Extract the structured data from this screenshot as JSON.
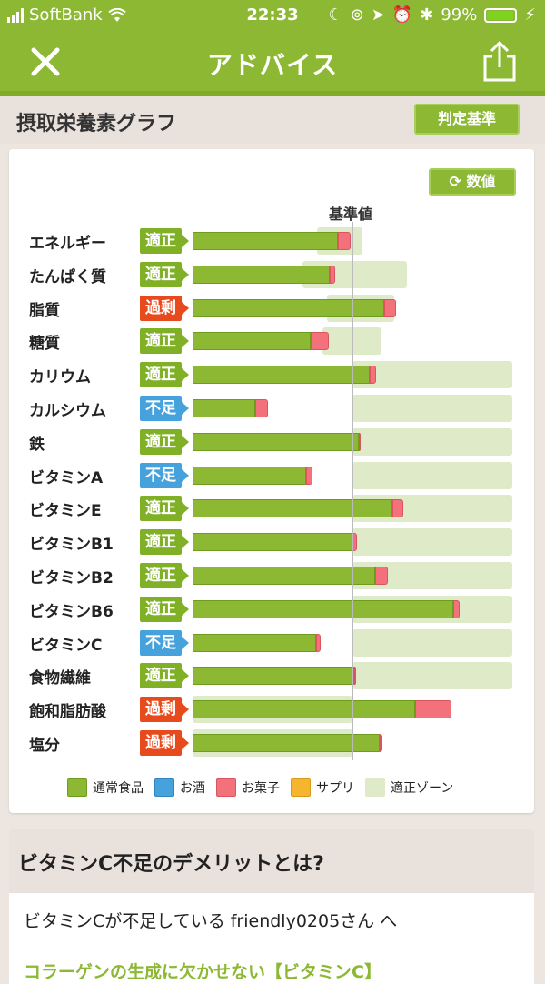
{
  "status_bar": {
    "carrier": "SoftBank",
    "time": "22:33",
    "battery": "99%"
  },
  "nav": {
    "title": "アドバイス",
    "close_icon": "close-icon",
    "share_icon": "share-icon"
  },
  "section": {
    "title": "摂取栄養素グラフ",
    "criteria_button": "判定基準"
  },
  "chart_card": {
    "value_toggle": "数値",
    "baseline_label": "基準値"
  },
  "chart_data": {
    "type": "bar",
    "orientation": "horizontal",
    "stacked": true,
    "baseline_label": "基準値",
    "categories": [
      "エネルギー",
      "たんぱく質",
      "脂質",
      "糖質",
      "カリウム",
      "カルシウム",
      "鉄",
      "ビタミンA",
      "ビタミンE",
      "ビタミンB1",
      "ビタミンB2",
      "ビタミンB6",
      "ビタミンC",
      "食物繊維",
      "飽和脂肪酸",
      "塩分"
    ],
    "status": [
      "適正",
      "適正",
      "過剰",
      "適正",
      "適正",
      "不足",
      "適正",
      "不足",
      "適正",
      "適正",
      "適正",
      "適正",
      "不足",
      "適正",
      "過剰",
      "過剰"
    ],
    "series": [
      {
        "name": "通常食品",
        "color": "#8cb833",
        "values": [
          91,
          86,
          120,
          74,
          111,
          39,
          104,
          71,
          125,
          100,
          114,
          163,
          77,
          101,
          139,
          117
        ]
      },
      {
        "name": "お酒",
        "color": "#45a2dc",
        "values": [
          0,
          0,
          0,
          0,
          0,
          0,
          0,
          0,
          0,
          0,
          0,
          0,
          0,
          0,
          0,
          0
        ]
      },
      {
        "name": "お菓子",
        "color": "#f3717a",
        "values": [
          8,
          3,
          7,
          11,
          4,
          8,
          1,
          4,
          7,
          3,
          8,
          4,
          3,
          1,
          23,
          2
        ]
      },
      {
        "name": "サプリ",
        "color": "#f5b52e",
        "values": [
          0,
          0,
          0,
          0,
          0,
          0,
          0,
          0,
          0,
          0,
          0,
          0,
          0,
          0,
          0,
          0
        ]
      }
    ],
    "optimal_zone": [
      [
        78,
        106
      ],
      [
        69,
        134
      ],
      [
        84,
        126
      ],
      [
        81,
        118
      ],
      [
        100,
        200
      ],
      [
        100,
        200
      ],
      [
        100,
        200
      ],
      [
        100,
        200
      ],
      [
        100,
        200
      ],
      [
        100,
        200
      ],
      [
        100,
        200
      ],
      [
        100,
        200
      ],
      [
        100,
        200
      ],
      [
        100,
        200
      ],
      [
        0,
        100
      ],
      [
        0,
        100
      ]
    ],
    "baseline": 100,
    "xlim": [
      0,
      200
    ],
    "legend": [
      "通常食品",
      "お酒",
      "お菓子",
      "サプリ",
      "適正ゾーン"
    ],
    "legend_position": "bottom"
  },
  "legend": {
    "items": [
      {
        "label": "通常食品",
        "color": "#8cb833",
        "border": "#6e9c1f"
      },
      {
        "label": "お酒",
        "color": "#45a2dc",
        "border": "#2f86c0"
      },
      {
        "label": "お菓子",
        "color": "#f3717a",
        "border": "#d95560"
      },
      {
        "label": "サプリ",
        "color": "#f5b52e",
        "border": "#d89a18"
      },
      {
        "label": "適正ゾーン",
        "color": "#dfeac8",
        "border": "#dfeac8"
      }
    ]
  },
  "status_colors": {
    "適正": "#7fb026",
    "不足": "#45a2dc",
    "過剰": "#e74a1c"
  },
  "article": {
    "heading": "ビタミンC不足のデメリットとは?",
    "intro": "ビタミンCが不足している friendly0205さん へ",
    "link": "コラーゲンの生成に欠かせない【ビタミンC】"
  }
}
